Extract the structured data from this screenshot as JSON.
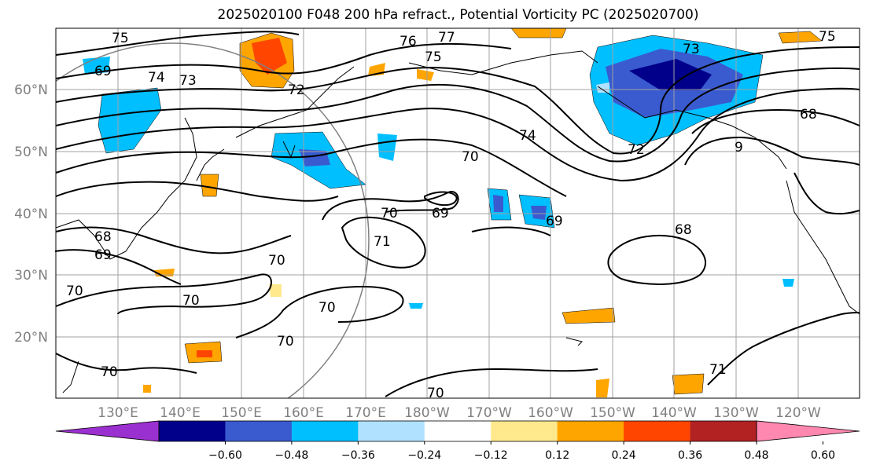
{
  "title": "2025020100 F048 200 hPa refract., Potential Vorticity PC (2025020700)",
  "lat_labels": [
    "60°N",
    "50°N",
    "40°N",
    "30°N",
    "20°N"
  ],
  "lon_labels": [
    "130°E",
    "140°E",
    "150°E",
    "160°E",
    "170°E",
    "180°W",
    "170°W",
    "160°W",
    "150°W",
    "140°W",
    "130°W",
    "120°W"
  ],
  "colorbar": {
    "ticks": [
      "−0.60",
      "−0.48",
      "−0.36",
      "−0.24",
      "−0.12",
      "0.12",
      "0.24",
      "0.36",
      "0.48",
      "0.60"
    ],
    "colors": [
      "#9b30d0",
      "#00008b",
      "#3a5bcf",
      "#00bfff",
      "#b0e2ff",
      "#ffffff",
      "#ffe98c",
      "#ffa500",
      "#ff4500",
      "#b22222",
      "#ff88b0"
    ]
  },
  "contour_labels": [
    "75",
    "74",
    "73",
    "72",
    "76",
    "77",
    "75",
    "73",
    "74",
    "70",
    "69",
    "68",
    "69",
    "70",
    "71",
    "70",
    "70",
    "70",
    "70",
    "70",
    "69",
    "68",
    "68",
    "71",
    "70",
    "75",
    "69",
    "70",
    "9",
    "72"
  ]
}
